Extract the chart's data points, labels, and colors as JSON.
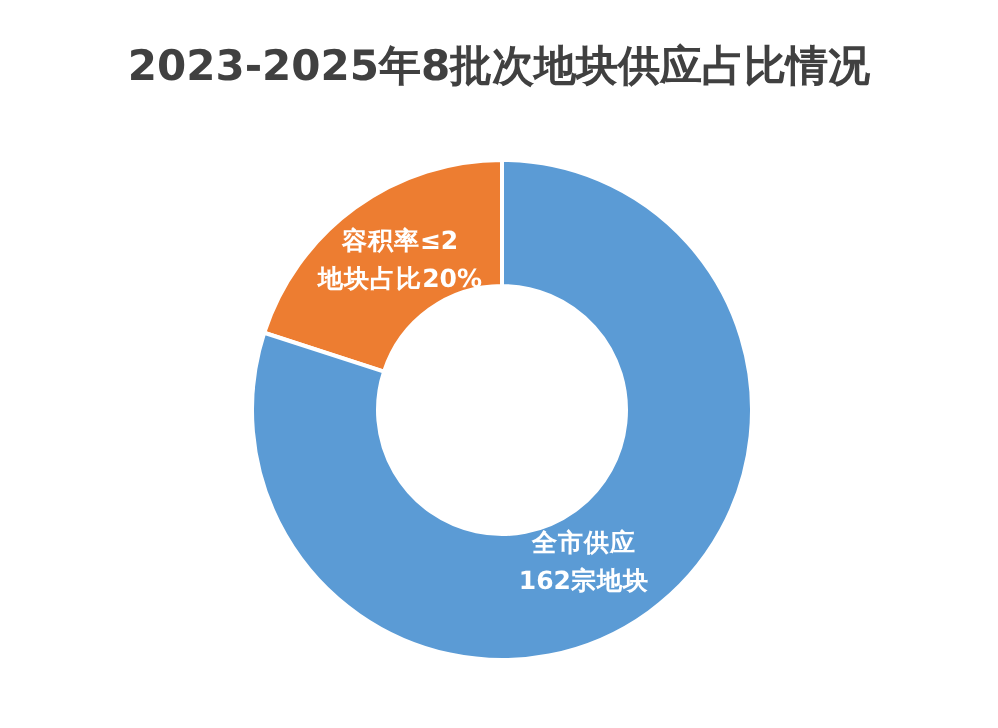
{
  "chart_data": {
    "type": "donut",
    "title": "2023-2025年8批次地块供应占比情况",
    "categories": [
      "容积率≤2\n地块占比20%",
      "全市供应\n162宗地块"
    ],
    "values": [
      20,
      80
    ],
    "colors": [
      "#ed7d31",
      "#5b9bd5"
    ]
  }
}
